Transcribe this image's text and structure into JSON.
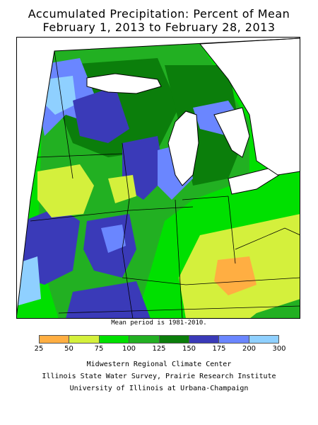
{
  "title_line1": "Accumulated Precipitation: Percent of Mean",
  "title_line2": "February 1, 2013 to February 28, 2013",
  "mean_period_note": "Mean period is 1981-2010.",
  "legend": {
    "colors": [
      "#ffae42",
      "#d4f03c",
      "#00e000",
      "#22b022",
      "#0b7e0b",
      "#3a3ab8",
      "#6a86ff",
      "#8fd0ff"
    ],
    "labels": [
      "25",
      "50",
      "75",
      "100",
      "125",
      "150",
      "175",
      "200",
      "300"
    ]
  },
  "credits": {
    "line1": "Midwestern Regional Climate Center",
    "line2": "Illinois State Water Survey, Prairie Research Institute",
    "line3": "University of Illinois at Urbana-Champaign"
  }
}
